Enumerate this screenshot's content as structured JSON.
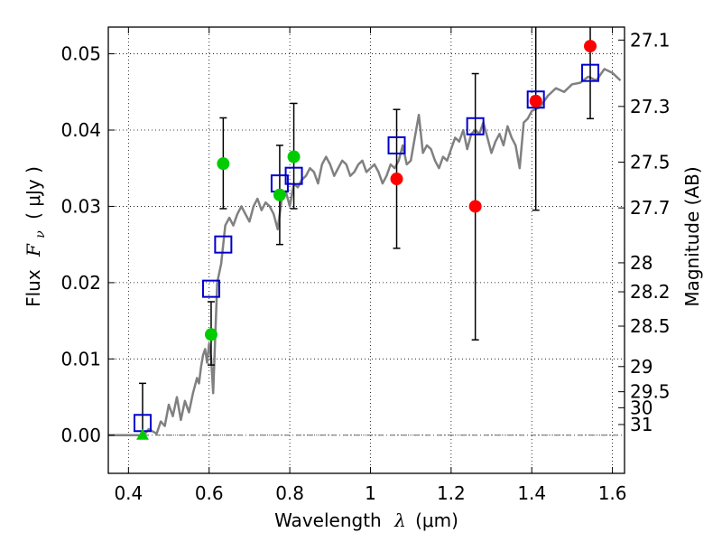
{
  "chart_data": {
    "type": "scatter",
    "xlabel_text": "Wavelength",
    "xlabel_symbol": "λ",
    "xlabel_unit": "(μm)",
    "ylabel_text": "Flux",
    "ylabel_symbol": "F",
    "ylabel_sub": "ν",
    "ylabel_unit": "( μJy )",
    "y2label": "Magnitude (AB)",
    "xlim": [
      0.35,
      1.63
    ],
    "ylim": [
      -0.005,
      0.0535
    ],
    "grid": true,
    "x_ticks": [
      0.4,
      0.6,
      0.8,
      1.0,
      1.2,
      1.4,
      1.6
    ],
    "x_tick_labels": [
      "0.4",
      "0.6",
      "0.8",
      "1",
      "1.2",
      "1.4",
      "1.6"
    ],
    "y_ticks": [
      0.0,
      0.01,
      0.02,
      0.03,
      0.04,
      0.05
    ],
    "y_tick_labels": [
      "0.00",
      "0.01",
      "0.02",
      "0.03",
      "0.04",
      "0.05"
    ],
    "mag_ticks": [
      {
        "label": "27.1",
        "flux": 0.0518
      },
      {
        "label": "27.3",
        "flux": 0.0431
      },
      {
        "label": "27.5",
        "flux": 0.0358
      },
      {
        "label": "27.7",
        "flux": 0.0298
      },
      {
        "label": "28",
        "flux": 0.0226
      },
      {
        "label": "28.2",
        "flux": 0.0188
      },
      {
        "label": "28.5",
        "flux": 0.0143
      },
      {
        "label": "29",
        "flux": 0.009
      },
      {
        "label": "29.5",
        "flux": 0.0057
      },
      {
        "label": "30",
        "flux": 0.0036
      },
      {
        "label": "31",
        "flux": 0.0014
      }
    ],
    "model_spectrum": {
      "color": "#808080",
      "x": [
        0.35,
        0.43,
        0.44,
        0.45,
        0.46,
        0.47,
        0.48,
        0.49,
        0.5,
        0.51,
        0.52,
        0.53,
        0.54,
        0.55,
        0.56,
        0.57,
        0.575,
        0.58,
        0.585,
        0.59,
        0.595,
        0.6,
        0.605,
        0.61,
        0.62,
        0.63,
        0.64,
        0.65,
        0.66,
        0.67,
        0.68,
        0.69,
        0.7,
        0.71,
        0.72,
        0.73,
        0.74,
        0.75,
        0.76,
        0.77,
        0.78,
        0.79,
        0.8,
        0.81,
        0.82,
        0.83,
        0.84,
        0.85,
        0.86,
        0.87,
        0.88,
        0.89,
        0.9,
        0.91,
        0.92,
        0.93,
        0.94,
        0.95,
        0.96,
        0.97,
        0.98,
        0.99,
        1.0,
        1.01,
        1.02,
        1.03,
        1.04,
        1.05,
        1.06,
        1.07,
        1.08,
        1.09,
        1.1,
        1.11,
        1.12,
        1.13,
        1.14,
        1.15,
        1.16,
        1.17,
        1.18,
        1.19,
        1.2,
        1.21,
        1.22,
        1.23,
        1.24,
        1.25,
        1.26,
        1.27,
        1.28,
        1.29,
        1.3,
        1.31,
        1.32,
        1.33,
        1.34,
        1.35,
        1.36,
        1.37,
        1.38,
        1.39,
        1.4,
        1.42,
        1.44,
        1.46,
        1.48,
        1.5,
        1.52,
        1.54,
        1.56,
        1.58,
        1.6,
        1.62
      ],
      "y": [
        0.0,
        0.0,
        0.0001,
        0.0008,
        0.0005,
        0.0002,
        0.0018,
        0.0012,
        0.004,
        0.0025,
        0.005,
        0.002,
        0.0045,
        0.003,
        0.0055,
        0.0075,
        0.0068,
        0.009,
        0.0105,
        0.0113,
        0.0095,
        0.012,
        0.01,
        0.0055,
        0.02,
        0.0225,
        0.0275,
        0.0285,
        0.0275,
        0.029,
        0.03,
        0.029,
        0.028,
        0.03,
        0.031,
        0.0295,
        0.0305,
        0.03,
        0.029,
        0.027,
        0.031,
        0.032,
        0.03,
        0.033,
        0.0325,
        0.0335,
        0.034,
        0.035,
        0.0345,
        0.033,
        0.0355,
        0.0365,
        0.0355,
        0.034,
        0.035,
        0.036,
        0.0355,
        0.034,
        0.0345,
        0.0355,
        0.036,
        0.0345,
        0.035,
        0.0355,
        0.0345,
        0.033,
        0.034,
        0.0355,
        0.035,
        0.036,
        0.038,
        0.0355,
        0.036,
        0.039,
        0.042,
        0.037,
        0.038,
        0.0375,
        0.036,
        0.035,
        0.0365,
        0.036,
        0.0375,
        0.039,
        0.0385,
        0.04,
        0.0375,
        0.0395,
        0.04,
        0.0395,
        0.041,
        0.039,
        0.037,
        0.0385,
        0.0395,
        0.038,
        0.0405,
        0.039,
        0.038,
        0.035,
        0.041,
        0.0415,
        0.0425,
        0.043,
        0.0445,
        0.0455,
        0.045,
        0.046,
        0.0462,
        0.047,
        0.0465,
        0.048,
        0.0475,
        0.0465
      ]
    },
    "model_photometry": {
      "marker": "open-square",
      "color": "#0000cc",
      "x": [
        0.435,
        0.605,
        0.635,
        0.775,
        0.81,
        1.065,
        1.26,
        1.41,
        1.545
      ],
      "y": [
        0.0016,
        0.0192,
        0.025,
        0.033,
        0.034,
        0.038,
        0.0405,
        0.044,
        0.0475
      ]
    },
    "observed_optical": {
      "marker": "filled-circle",
      "color": "#00cc00",
      "x": [
        0.605,
        0.635,
        0.775,
        0.81
      ],
      "y": [
        0.0132,
        0.0356,
        0.0315,
        0.0365
      ],
      "err_low": [
        0.0092,
        0.0297,
        0.025,
        0.0297
      ],
      "err_high": [
        0.0175,
        0.0416,
        0.038,
        0.0435
      ]
    },
    "observed_nir": {
      "marker": "filled-circle",
      "color": "#ff0000",
      "x": [
        1.065,
        1.26,
        1.41,
        1.545
      ],
      "y": [
        0.0336,
        0.03,
        0.0438,
        0.051
      ],
      "err_low": [
        0.0245,
        0.0125,
        0.0295,
        0.0415
      ],
      "err_high": [
        0.0427,
        0.0474,
        0.0535,
        0.0535
      ]
    },
    "upper_limit": {
      "marker": "triangle-up",
      "color": "#00cc00",
      "x": [
        0.435
      ],
      "y": [
        0.0
      ],
      "err_low": [
        0.0
      ],
      "err_high": [
        0.0068
      ]
    }
  }
}
